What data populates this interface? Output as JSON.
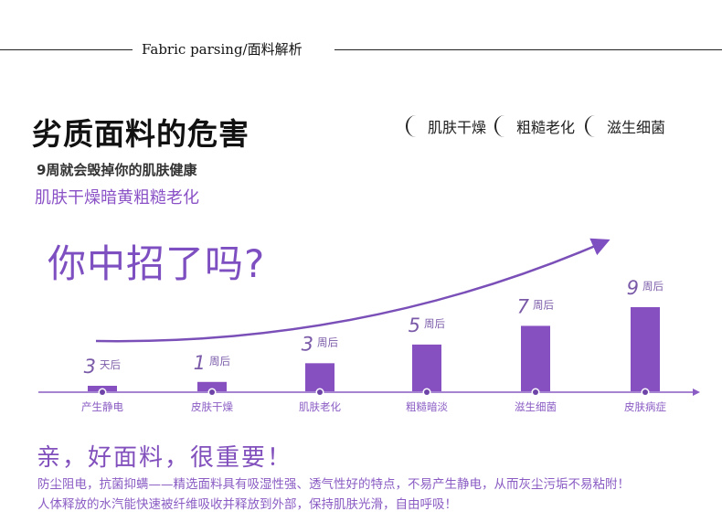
{
  "header": {
    "title": "Fabric parsing/面料解析"
  },
  "title": "劣质面料的危害",
  "subtitle": "9周就会毁掉你的肌肤健康",
  "subtitle_purple": "肌肤干燥暗黄粗糙老化",
  "tags": [
    "肌肤干燥",
    "粗糙老化",
    "滋生细菌"
  ],
  "question": "你中招了吗?",
  "colors": {
    "accent": "#8650c0",
    "text": "#111111"
  },
  "chart_data": {
    "type": "bar",
    "categories": [
      "产生静电",
      "皮肤干燥",
      "肌肤老化",
      "粗糙暗淡",
      "滋生细菌",
      "皮肤病症"
    ],
    "labels": [
      {
        "num": "3",
        "unit": "天后"
      },
      {
        "num": "1",
        "unit": "周后"
      },
      {
        "num": "3",
        "unit": "周后"
      },
      {
        "num": "5",
        "unit": "周后"
      },
      {
        "num": "7",
        "unit": "周后"
      },
      {
        "num": "9",
        "unit": "周后"
      }
    ],
    "values_days": [
      3,
      7,
      21,
      35,
      49,
      63
    ]
  },
  "bottom": {
    "headline": "亲，好面料，很重要！",
    "lines": [
      "防尘阻电，抗菌抑螨——精选面料具有吸湿性强、透气性好的特点，不易产生静电，从而灰尘污垢不易粘附！",
      "人体释放的水汽能快速被纤维吸收并释放到外部，保持肌肤光滑，自由呼吸！"
    ]
  }
}
